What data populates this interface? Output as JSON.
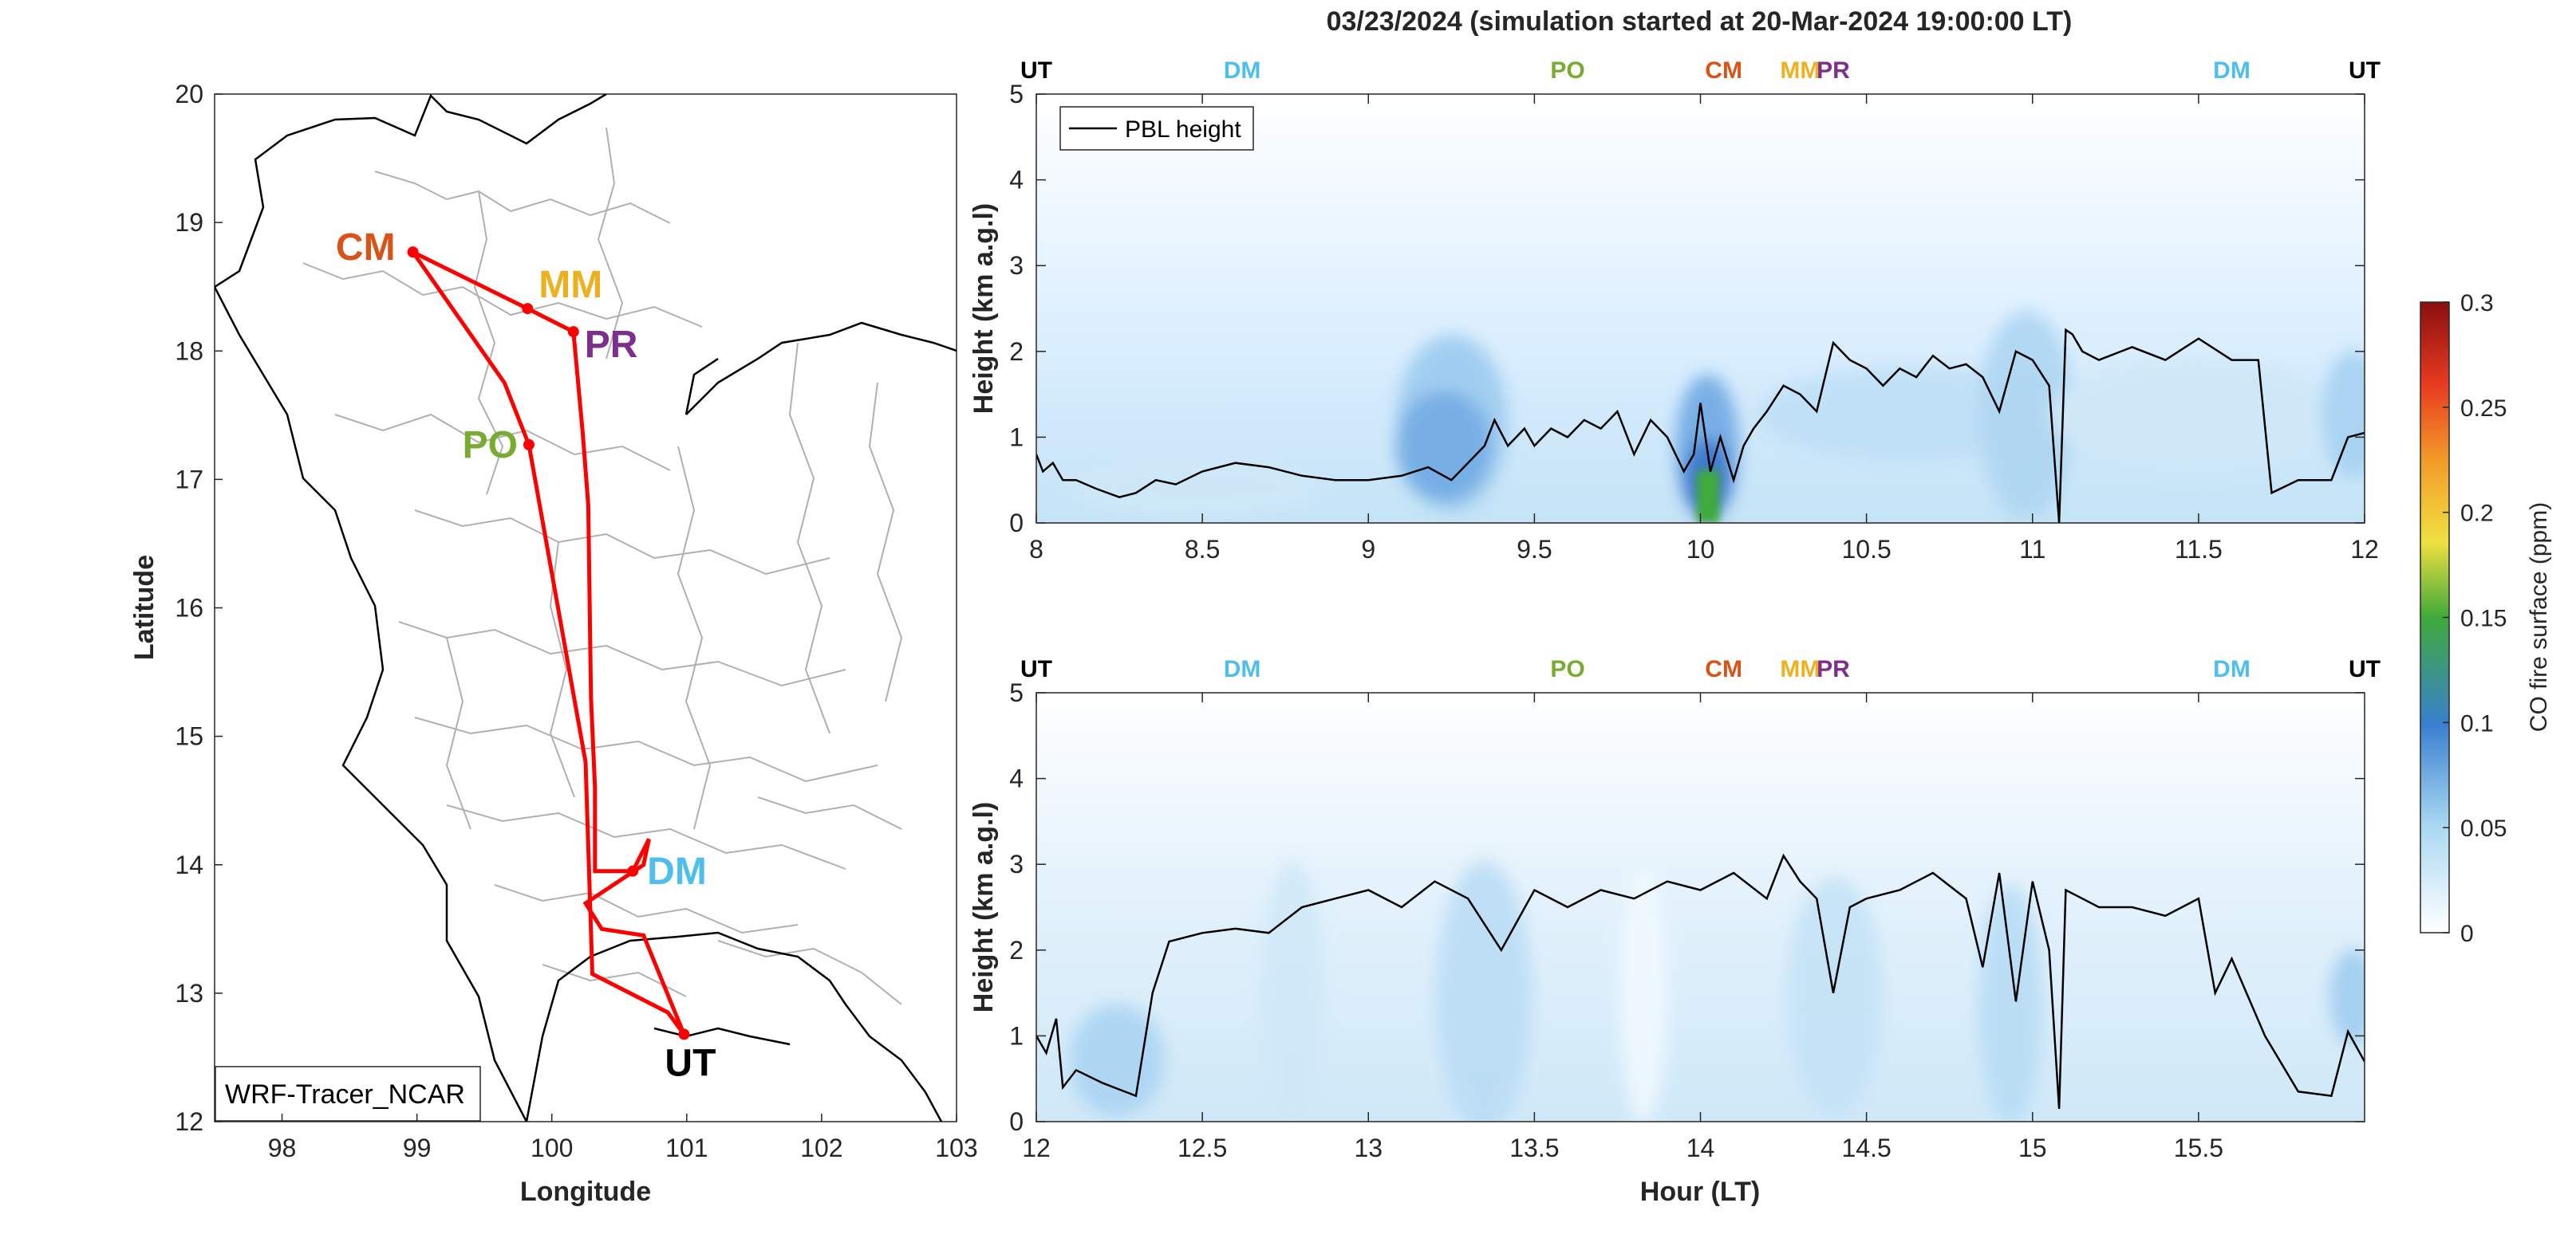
{
  "figure_title": "03/23/2024 (simulation started at 20-Mar-2024 19:00:00 LT)",
  "colors": {
    "CM": "#d95319",
    "MM": "#edb120",
    "PR": "#7e2f8e",
    "PO": "#77ac30",
    "DM": "#4dbeee",
    "UT": "#000000",
    "route": "#ff0000",
    "pbl": "#000000"
  },
  "chart_data": [
    {
      "type": "map",
      "xlabel": "Longitude",
      "ylabel": "Latitude",
      "xlim": [
        97.5,
        103
      ],
      "ylim": [
        12,
        20
      ],
      "xticks": [
        "98",
        "99",
        "100",
        "101",
        "102",
        "103"
      ],
      "yticks": [
        "12",
        "13",
        "14",
        "15",
        "16",
        "17",
        "18",
        "19",
        "20"
      ],
      "legend": "WRF-Tracer_NCAR",
      "stations": [
        {
          "name": "CM",
          "lon": 98.97,
          "lat": 18.77
        },
        {
          "name": "MM",
          "lon": 99.82,
          "lat": 18.33
        },
        {
          "name": "PR",
          "lon": 100.16,
          "lat": 18.15
        },
        {
          "name": "PO",
          "lon": 99.83,
          "lat": 17.27
        },
        {
          "name": "DM",
          "lon": 100.6,
          "lat": 13.95
        },
        {
          "name": "UT",
          "lon": 100.98,
          "lat": 12.68
        }
      ],
      "route": [
        [
          98.97,
          18.77
        ],
        [
          99.82,
          18.33
        ],
        [
          100.16,
          18.15
        ],
        [
          100.23,
          17.35
        ],
        [
          100.27,
          16.8
        ],
        [
          100.29,
          15.3
        ],
        [
          100.32,
          14.6
        ],
        [
          100.32,
          13.95
        ],
        [
          100.6,
          13.95
        ],
        [
          100.72,
          14.2
        ],
        [
          100.68,
          14.0
        ],
        [
          100.25,
          13.7
        ],
        [
          100.37,
          13.5
        ],
        [
          100.68,
          13.45
        ],
        [
          100.98,
          12.68
        ],
        [
          100.86,
          12.85
        ],
        [
          100.3,
          13.15
        ],
        [
          100.25,
          14.8
        ],
        [
          99.83,
          17.27
        ],
        [
          99.65,
          17.75
        ],
        [
          98.97,
          18.77
        ]
      ]
    },
    {
      "type": "heatmap",
      "ylabel": "Height (km a.g.l)",
      "xlim": [
        8,
        12
      ],
      "ylim": [
        0,
        5
      ],
      "xticks": [
        "8",
        "8.5",
        "9",
        "9.5",
        "10",
        "10.5",
        "11",
        "11.5",
        "12"
      ],
      "yticks": [
        "0",
        "1",
        "2",
        "3",
        "4",
        "5"
      ],
      "legend": [
        "PBL height"
      ],
      "top_labels": [
        {
          "text": "UT",
          "x": 8.0
        },
        {
          "text": "DM",
          "x": 8.62
        },
        {
          "text": "PO",
          "x": 9.6
        },
        {
          "text": "CM",
          "x": 10.07
        },
        {
          "text": "MM",
          "x": 10.3
        },
        {
          "text": "PR",
          "x": 10.4
        },
        {
          "text": "DM",
          "x": 11.6
        },
        {
          "text": "UT",
          "x": 12.0
        }
      ],
      "pbl_height": {
        "x": [
          8.0,
          8.02,
          8.05,
          8.08,
          8.12,
          8.18,
          8.25,
          8.3,
          8.36,
          8.42,
          8.5,
          8.6,
          8.7,
          8.8,
          8.9,
          9.0,
          9.1,
          9.18,
          9.25,
          9.3,
          9.35,
          9.38,
          9.42,
          9.47,
          9.5,
          9.55,
          9.6,
          9.65,
          9.7,
          9.75,
          9.8,
          9.85,
          9.9,
          9.95,
          9.98,
          10.0,
          10.03,
          10.06,
          10.1,
          10.13,
          10.16,
          10.2,
          10.25,
          10.3,
          10.35,
          10.4,
          10.45,
          10.5,
          10.55,
          10.6,
          10.65,
          10.7,
          10.75,
          10.8,
          10.85,
          10.9,
          10.95,
          11.0,
          11.05,
          11.08,
          11.1,
          11.12,
          11.15,
          11.2,
          11.3,
          11.4,
          11.5,
          11.6,
          11.68,
          11.72,
          11.8,
          11.9,
          11.95,
          12.0
        ],
        "y": [
          0.8,
          0.6,
          0.7,
          0.5,
          0.5,
          0.4,
          0.3,
          0.35,
          0.5,
          0.45,
          0.6,
          0.7,
          0.65,
          0.55,
          0.5,
          0.5,
          0.55,
          0.65,
          0.5,
          0.7,
          0.9,
          1.2,
          0.9,
          1.1,
          0.9,
          1.1,
          1.0,
          1.2,
          1.1,
          1.3,
          0.8,
          1.2,
          1.0,
          0.6,
          0.8,
          1.4,
          0.6,
          1.0,
          0.5,
          0.9,
          1.1,
          1.3,
          1.6,
          1.5,
          1.3,
          2.1,
          1.9,
          1.8,
          1.6,
          1.8,
          1.7,
          1.95,
          1.8,
          1.85,
          1.7,
          1.3,
          2.0,
          1.9,
          1.6,
          0.0,
          2.25,
          2.2,
          2.0,
          1.9,
          2.05,
          1.9,
          2.15,
          1.9,
          1.9,
          0.35,
          0.5,
          0.5,
          1.0,
          1.05
        ]
      }
    },
    {
      "type": "heatmap",
      "xlabel": "Hour (LT)",
      "ylabel": "Height (km a.g.l)",
      "xlim": [
        12,
        16
      ],
      "ylim": [
        0,
        5
      ],
      "xticks": [
        "12",
        "12.5",
        "13",
        "13.5",
        "14",
        "14.5",
        "15",
        "15.5"
      ],
      "yticks": [
        "0",
        "1",
        "2",
        "3",
        "4",
        "5"
      ],
      "top_labels": [
        {
          "text": "UT",
          "x": 12.0
        },
        {
          "text": "DM",
          "x": 12.62
        },
        {
          "text": "PO",
          "x": 13.6
        },
        {
          "text": "CM",
          "x": 14.07
        },
        {
          "text": "MM",
          "x": 14.3
        },
        {
          "text": "PR",
          "x": 14.4
        },
        {
          "text": "DM",
          "x": 15.6
        },
        {
          "text": "UT",
          "x": 16.0
        }
      ],
      "pbl_height": {
        "x": [
          12.0,
          12.03,
          12.06,
          12.08,
          12.12,
          12.2,
          12.3,
          12.35,
          12.4,
          12.5,
          12.6,
          12.7,
          12.8,
          12.9,
          13.0,
          13.1,
          13.2,
          13.3,
          13.4,
          13.5,
          13.6,
          13.7,
          13.8,
          13.9,
          14.0,
          14.1,
          14.2,
          14.25,
          14.3,
          14.35,
          14.4,
          14.45,
          14.5,
          14.6,
          14.7,
          14.8,
          14.85,
          14.9,
          14.95,
          15.0,
          15.05,
          15.08,
          15.1,
          15.15,
          15.2,
          15.3,
          15.4,
          15.45,
          15.5,
          15.55,
          15.6,
          15.7,
          15.8,
          15.9,
          15.95,
          16.0
        ],
        "y": [
          1.0,
          0.8,
          1.2,
          0.4,
          0.6,
          0.45,
          0.3,
          1.5,
          2.1,
          2.2,
          2.25,
          2.2,
          2.5,
          2.6,
          2.7,
          2.5,
          2.8,
          2.6,
          2.0,
          2.7,
          2.5,
          2.7,
          2.6,
          2.8,
          2.7,
          2.9,
          2.6,
          3.1,
          2.8,
          2.6,
          1.5,
          2.5,
          2.6,
          2.7,
          2.9,
          2.6,
          1.8,
          2.9,
          1.4,
          2.8,
          2.0,
          0.15,
          2.7,
          2.6,
          2.5,
          2.5,
          2.4,
          2.5,
          2.6,
          1.5,
          1.9,
          1.0,
          0.35,
          0.3,
          1.05,
          0.7
        ]
      }
    },
    {
      "type": "colorbar",
      "label": "CO fire surface (ppm)",
      "range": [
        0,
        0.3
      ],
      "ticks": [
        "0",
        "0.05",
        "0.1",
        "0.15",
        "0.2",
        "0.25",
        "0.3"
      ]
    }
  ]
}
